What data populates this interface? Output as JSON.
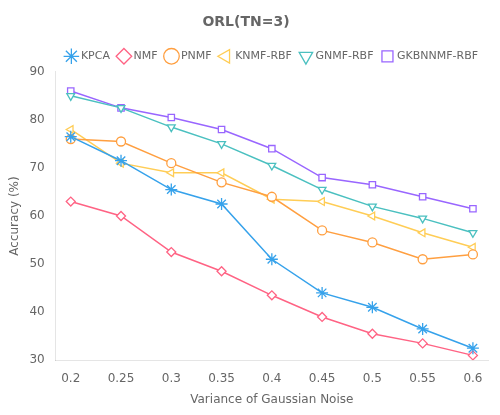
{
  "chart_data": {
    "type": "line",
    "title": "ORL(TN=3)",
    "xlabel": "Variance of Gaussian Noise",
    "ylabel": "Accuracy (%)",
    "x": [
      0.2,
      0.25,
      0.3,
      0.35,
      0.4,
      0.45,
      0.5,
      0.55,
      0.6
    ],
    "xlim": [
      0.185,
      0.615
    ],
    "xticks": [
      0.2,
      0.25,
      0.3,
      0.35,
      0.4,
      0.45,
      0.5,
      0.55,
      0.6
    ],
    "ylim": [
      30,
      90
    ],
    "yticks": [
      30,
      40,
      50,
      60,
      70,
      80,
      90
    ],
    "grid": false,
    "legend": "upper right",
    "series": [
      {
        "name": "KPCA",
        "marker": "star",
        "values": [
          76.5,
          71.5,
          65.5,
          62.5,
          51.0,
          44.0,
          41.0,
          36.5,
          32.5
        ]
      },
      {
        "name": "NMF",
        "marker": "diamond-open",
        "values": [
          63.0,
          60.0,
          52.5,
          48.5,
          43.5,
          39.0,
          35.5,
          33.5,
          31.0
        ]
      },
      {
        "name": "PNMF",
        "marker": "circle-open",
        "values": [
          76.0,
          75.5,
          71.0,
          67.0,
          64.0,
          57.0,
          54.5,
          51.0,
          52.0
        ]
      },
      {
        "name": "KNMF-RBF",
        "marker": "triangle-left-open",
        "values": [
          78.0,
          71.0,
          69.0,
          69.0,
          63.5,
          63.0,
          60.0,
          56.5,
          53.5
        ]
      },
      {
        "name": "GNMF-RBF",
        "marker": "triangle-down-open",
        "values": [
          85.0,
          82.5,
          78.5,
          75.0,
          70.5,
          65.5,
          62.0,
          59.5,
          56.5
        ]
      },
      {
        "name": "GKBNNMF-RBF",
        "marker": "square-open",
        "values": [
          86.0,
          82.5,
          80.5,
          78.0,
          74.0,
          68.0,
          66.5,
          64.0,
          61.5
        ]
      }
    ]
  }
}
